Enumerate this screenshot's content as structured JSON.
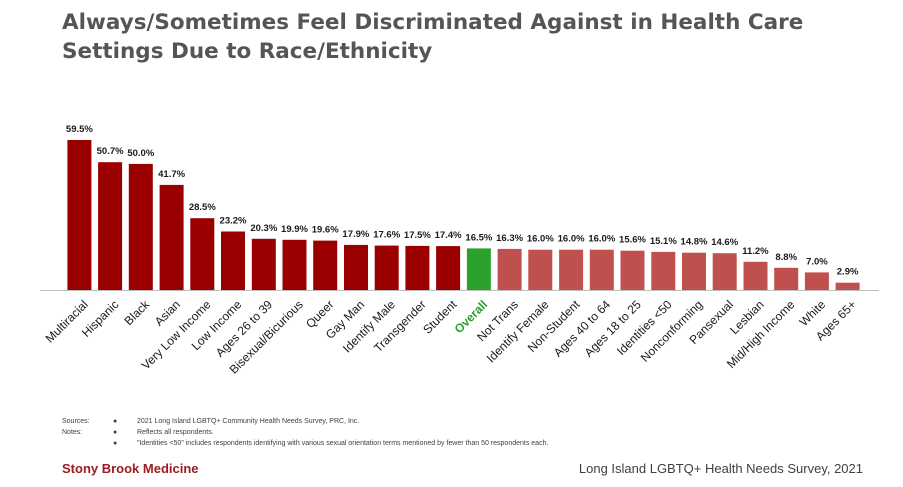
{
  "title": "Always/Sometimes Feel Discriminated Against in Health Care Settings Due to Race/Ethnicity",
  "colors": {
    "dark_red": "#9b0000",
    "light_red": "#c0504d",
    "overall_green": "#2ca02c",
    "title": "#555555",
    "brand": "#9b1c24"
  },
  "chart_data": {
    "type": "bar",
    "categories": [
      "Multiracial",
      "Hispanic",
      "Black",
      "Asian",
      "Very Low Income",
      "Low Income",
      "Ages 26 to 39",
      "Bisexual/Bicurious",
      "Queer",
      "Gay Man",
      "Identify Male",
      "Transgender",
      "Student",
      "Overall",
      "Not Trans",
      "Identify Female",
      "Non-Student",
      "Ages 40 to 64",
      "Ages 18 to 25",
      "Identities <50",
      "Nonconforming",
      "Pansexual",
      "Lesbian",
      "Mid/High Income",
      "White",
      "Ages 65+"
    ],
    "values": [
      59.5,
      50.7,
      50.0,
      41.7,
      28.5,
      23.2,
      20.3,
      19.9,
      19.6,
      17.9,
      17.6,
      17.5,
      17.4,
      16.5,
      16.3,
      16.0,
      16.0,
      16.0,
      15.6,
      15.1,
      14.8,
      14.6,
      11.2,
      8.8,
      7.0,
      2.9
    ],
    "data_labels": [
      "59.5%",
      "50.7%",
      "50.0%",
      "41.7%",
      "28.5%",
      "23.2%",
      "20.3%",
      "19.9%",
      "19.6%",
      "17.9%",
      "17.6%",
      "17.5%",
      "17.4%",
      "16.5%",
      "16.3%",
      "16.0%",
      "16.0%",
      "16.0%",
      "15.6%",
      "15.1%",
      "14.8%",
      "14.6%",
      "11.2%",
      "8.8%",
      "7.0%",
      "2.9%"
    ],
    "bar_groups": [
      "above",
      "above",
      "above",
      "above",
      "above",
      "above",
      "above",
      "above",
      "above",
      "above",
      "above",
      "above",
      "above",
      "overall",
      "below",
      "below",
      "below",
      "below",
      "below",
      "below",
      "below",
      "below",
      "below",
      "below",
      "below",
      "below"
    ],
    "ylim": [
      0,
      60
    ],
    "grid": false,
    "legend": "none",
    "xlabel": "",
    "ylabel": ""
  },
  "notes": [
    {
      "label": "Sources:",
      "text": "2021 Long Island LGBTQ+ Community Health Needs Survey, PRC, Inc."
    },
    {
      "label": "Notes:",
      "text": "Reflects all respondents."
    },
    {
      "label": "",
      "text": "\"Identities <50\" includes respondents identifying with various sexual orientation terms mentioned by fewer than 50 respondents each."
    }
  ],
  "footer": {
    "left": "Stony Brook Medicine",
    "right": "Long Island LGBTQ+ Health Needs Survey, 2021"
  }
}
